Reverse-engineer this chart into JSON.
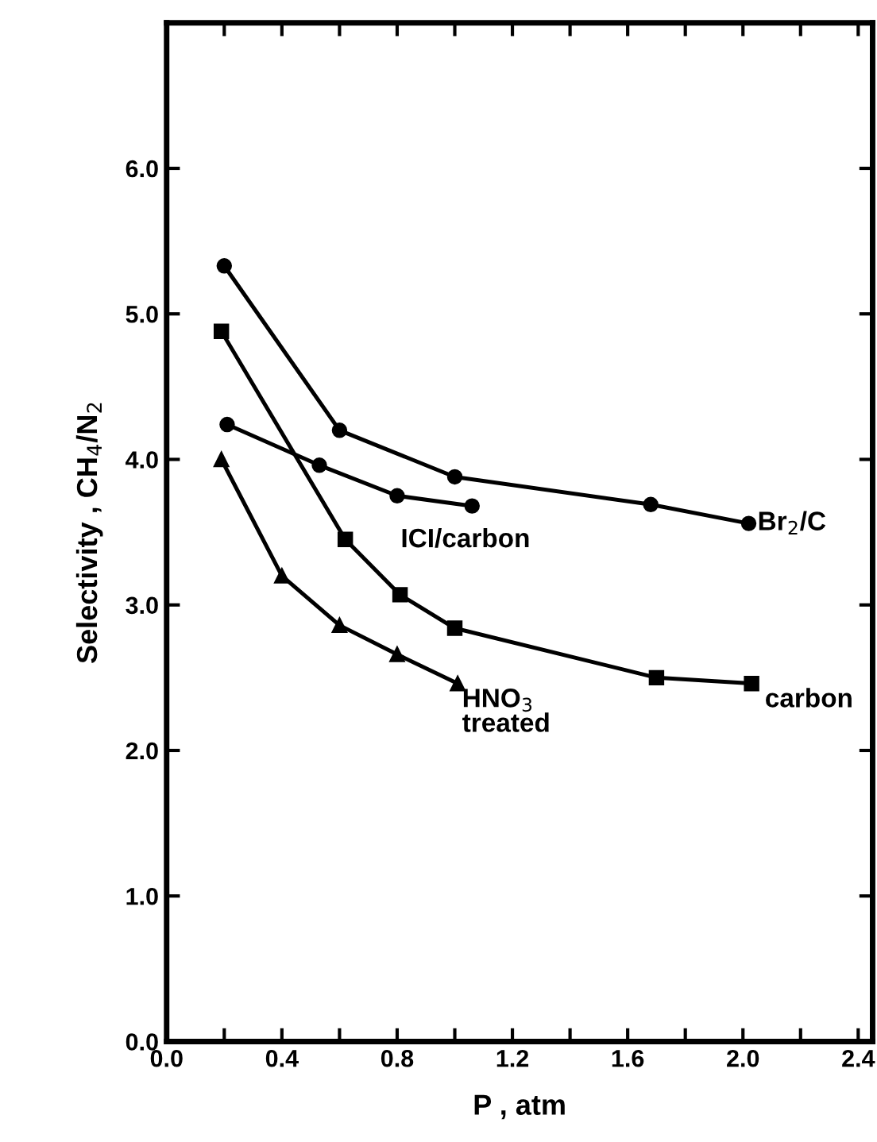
{
  "chart_data": {
    "type": "line",
    "xlabel": "P , atm",
    "ylabel": "Selectivity , CH$_{4}$/N$_{2}$",
    "series": [
      {
        "name": "Br$_{2}$/C",
        "x": [
          0.2,
          0.6,
          1.0,
          1.68,
          2.02
        ],
        "values": [
          5.33,
          4.2,
          3.88,
          3.69,
          3.56
        ],
        "color": "#000000",
        "marker": "circle"
      },
      {
        "name": "ICI/carbon",
        "x": [
          0.21,
          0.53,
          0.8,
          1.06
        ],
        "values": [
          4.24,
          3.96,
          3.75,
          3.68
        ],
        "color": "#000000",
        "marker": "circle"
      },
      {
        "name": "carbon",
        "x": [
          0.19,
          0.62,
          0.81,
          1.0,
          1.7,
          2.03
        ],
        "values": [
          4.88,
          3.45,
          3.07,
          2.84,
          2.5,
          2.46
        ],
        "color": "#000000",
        "marker": "square"
      },
      {
        "name": "HNO$_{3}$\ntreated",
        "x": [
          0.19,
          0.4,
          0.6,
          0.8,
          1.01
        ],
        "values": [
          4.0,
          3.2,
          2.86,
          2.66,
          2.46
        ],
        "color": "#000000",
        "marker": "triangle"
      }
    ],
    "xlim": [
      0,
      2.45
    ],
    "ylim": [
      0,
      7.0
    ],
    "xticks": [
      {
        "value": 0,
        "label": "0.0"
      },
      {
        "value": 0.2,
        "label": null
      },
      {
        "value": 0.4,
        "label": "0.4"
      },
      {
        "value": 0.6,
        "label": null
      },
      {
        "value": 0.8,
        "label": "0.8"
      },
      {
        "value": 1.0,
        "label": null
      },
      {
        "value": 1.2,
        "label": "1.2"
      },
      {
        "value": 1.4,
        "label": null
      },
      {
        "value": 1.6,
        "label": "1.6"
      },
      {
        "value": 1.8,
        "label": null
      },
      {
        "value": 2.0,
        "label": "2.0"
      },
      {
        "value": 2.2,
        "label": null
      },
      {
        "value": 2.4,
        "label": "2.4"
      }
    ],
    "yticks": [
      {
        "value": 0,
        "label": "0.0"
      },
      {
        "value": 1,
        "label": "1.0"
      },
      {
        "value": 2,
        "label": "2.0"
      },
      {
        "value": 3,
        "label": "3.0"
      },
      {
        "value": 4,
        "label": "4.0"
      },
      {
        "value": 5,
        "label": "5.0"
      },
      {
        "value": 6,
        "label": "6.0"
      }
    ],
    "grid": false,
    "legend": false,
    "line_style": "solid"
  }
}
